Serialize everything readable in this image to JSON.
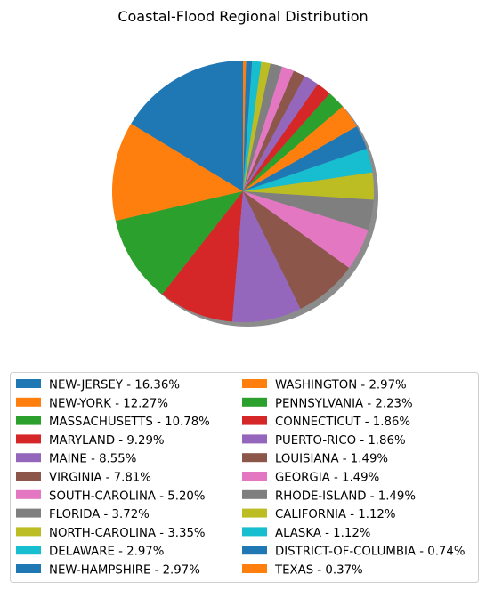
{
  "chart_data": {
    "type": "pie",
    "title": "Coastal-Flood Regional Distribution",
    "shadow": true,
    "start_angle_deg": 90,
    "direction": "counterclockwise",
    "legend_placement": "bottom-center",
    "legend_columns": 2,
    "slices": [
      {
        "label": "NEW-JERSEY - 16.36%",
        "value": 16.36,
        "color": "#1f77b4"
      },
      {
        "label": "NEW-YORK - 12.27%",
        "value": 12.27,
        "color": "#ff7f0e"
      },
      {
        "label": "MASSACHUSETTS - 10.78%",
        "value": 10.78,
        "color": "#2ca02c"
      },
      {
        "label": "MARYLAND - 9.29%",
        "value": 9.29,
        "color": "#d62728"
      },
      {
        "label": "MAINE - 8.55%",
        "value": 8.55,
        "color": "#9467bd"
      },
      {
        "label": "VIRGINIA - 7.81%",
        "value": 7.81,
        "color": "#8c564b"
      },
      {
        "label": "SOUTH-CAROLINA - 5.20%",
        "value": 5.2,
        "color": "#e377c2"
      },
      {
        "label": "FLORIDA - 3.72%",
        "value": 3.72,
        "color": "#7f7f7f"
      },
      {
        "label": "NORTH-CAROLINA - 3.35%",
        "value": 3.35,
        "color": "#bcbd22"
      },
      {
        "label": "DELAWARE - 2.97%",
        "value": 2.97,
        "color": "#17becf"
      },
      {
        "label": "NEW-HAMPSHIRE - 2.97%",
        "value": 2.97,
        "color": "#1f77b4"
      },
      {
        "label": "WASHINGTON - 2.97%",
        "value": 2.97,
        "color": "#ff7f0e"
      },
      {
        "label": "PENNSYLVANIA - 2.23%",
        "value": 2.23,
        "color": "#2ca02c"
      },
      {
        "label": "CONNECTICUT - 1.86%",
        "value": 1.86,
        "color": "#d62728"
      },
      {
        "label": "PUERTO-RICO - 1.86%",
        "value": 1.86,
        "color": "#9467bd"
      },
      {
        "label": "LOUISIANA - 1.49%",
        "value": 1.49,
        "color": "#8c564b"
      },
      {
        "label": "GEORGIA - 1.49%",
        "value": 1.49,
        "color": "#e377c2"
      },
      {
        "label": "RHODE-ISLAND - 1.49%",
        "value": 1.49,
        "color": "#7f7f7f"
      },
      {
        "label": "CALIFORNIA - 1.12%",
        "value": 1.12,
        "color": "#bcbd22"
      },
      {
        "label": "ALASKA - 1.12%",
        "value": 1.12,
        "color": "#17becf"
      },
      {
        "label": "DISTRICT-OF-COLUMBIA - 0.74%",
        "value": 0.74,
        "color": "#1f77b4"
      },
      {
        "label": "TEXAS - 0.37%",
        "value": 0.37,
        "color": "#ff7f0e"
      }
    ]
  }
}
